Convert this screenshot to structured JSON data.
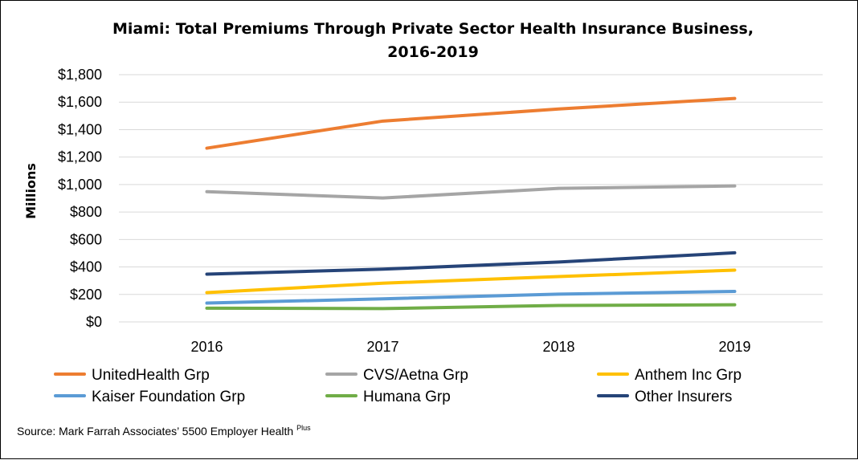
{
  "chart_data": {
    "type": "line",
    "title": [
      "Miami: Total Premiums Through Private Sector Health Insurance Business,",
      "2016-2019"
    ],
    "ylabel": "Millions",
    "xlabel": "",
    "categories": [
      "2016",
      "2017",
      "2018",
      "2019"
    ],
    "ylim": [
      0,
      1800
    ],
    "yticks": [
      0,
      200,
      400,
      600,
      800,
      1000,
      1200,
      1400,
      1600,
      1800
    ],
    "ytick_labels": [
      "$0",
      "$200",
      "$400",
      "$600",
      "$800",
      "$1,000",
      "$1,200",
      "$1,400",
      "$1,600",
      "$1,800"
    ],
    "grid": true,
    "legend_position": "bottom",
    "series": [
      {
        "name": "UnitedHealth Grp",
        "color": "#ED7D31",
        "values": [
          1265,
          1462,
          1550,
          1627
        ]
      },
      {
        "name": "CVS/Aetna Grp",
        "color": "#A5A5A5",
        "values": [
          948,
          902,
          972,
          990
        ]
      },
      {
        "name": "Anthem Inc Grp",
        "color": "#FFC000",
        "values": [
          213,
          282,
          330,
          377
        ]
      },
      {
        "name": "Kaiser Foundation Grp",
        "color": "#5B9BD5",
        "values": [
          137,
          168,
          202,
          222
        ]
      },
      {
        "name": "Humana Grp",
        "color": "#70AD47",
        "values": [
          100,
          97,
          120,
          125
        ]
      },
      {
        "name": "Other Insurers",
        "color": "#264478",
        "values": [
          348,
          384,
          436,
          503
        ]
      }
    ]
  },
  "source": {
    "text": "Source: Mark Farrah Associates’ 5500 Employer Health",
    "superscript": "Plus"
  }
}
